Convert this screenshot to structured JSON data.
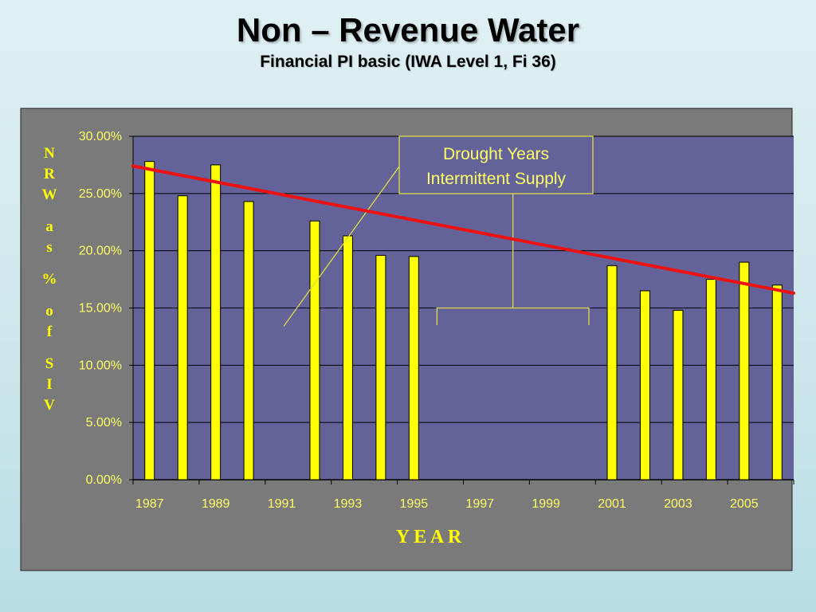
{
  "slide": {
    "title": "Non – Revenue Water",
    "subtitle": "Financial PI basic (IWA Level 1, Fi 36)"
  },
  "chart_data": {
    "type": "bar",
    "xlabel": "Y E A R",
    "ylabel": "NRW as % of SIV",
    "ylim": [
      0,
      30
    ],
    "grid": true,
    "legend": "none",
    "years": [
      1987,
      1988,
      1989,
      1990,
      1991,
      1992,
      1993,
      1994,
      1995,
      1996,
      1997,
      1998,
      1999,
      2000,
      2001,
      2002,
      2003,
      2004,
      2005,
      2006
    ],
    "x_tick_labels": [
      "1987",
      "1989",
      "1991",
      "1993",
      "1995",
      "1997",
      "1999",
      "2001",
      "2003",
      "2005"
    ],
    "y_tick_labels": [
      "0.00%",
      "5.00%",
      "10.00%",
      "15.00%",
      "20.00%",
      "25.00%",
      "30.00%"
    ],
    "series": [
      {
        "values": [
          27.8,
          24.8,
          27.5,
          24.3,
          null,
          22.6,
          21.3,
          19.6,
          19.5,
          null,
          null,
          null,
          null,
          null,
          18.7,
          16.5,
          14.8,
          17.5,
          19.0,
          17.0
        ]
      }
    ],
    "trendline": {
      "start": [
        1987,
        27.4
      ],
      "end": [
        2006,
        16.3
      ]
    },
    "annotation": {
      "lines": [
        "Drought Years",
        "Intermittent Supply"
      ],
      "span": [
        1996,
        2000
      ]
    },
    "colors": {
      "bar_fill": "#ffff00",
      "trend_line": "#ee1111",
      "plot_bg": "#63639a",
      "frame_bg": "#7a7a7a",
      "text": "#ffff66"
    }
  }
}
